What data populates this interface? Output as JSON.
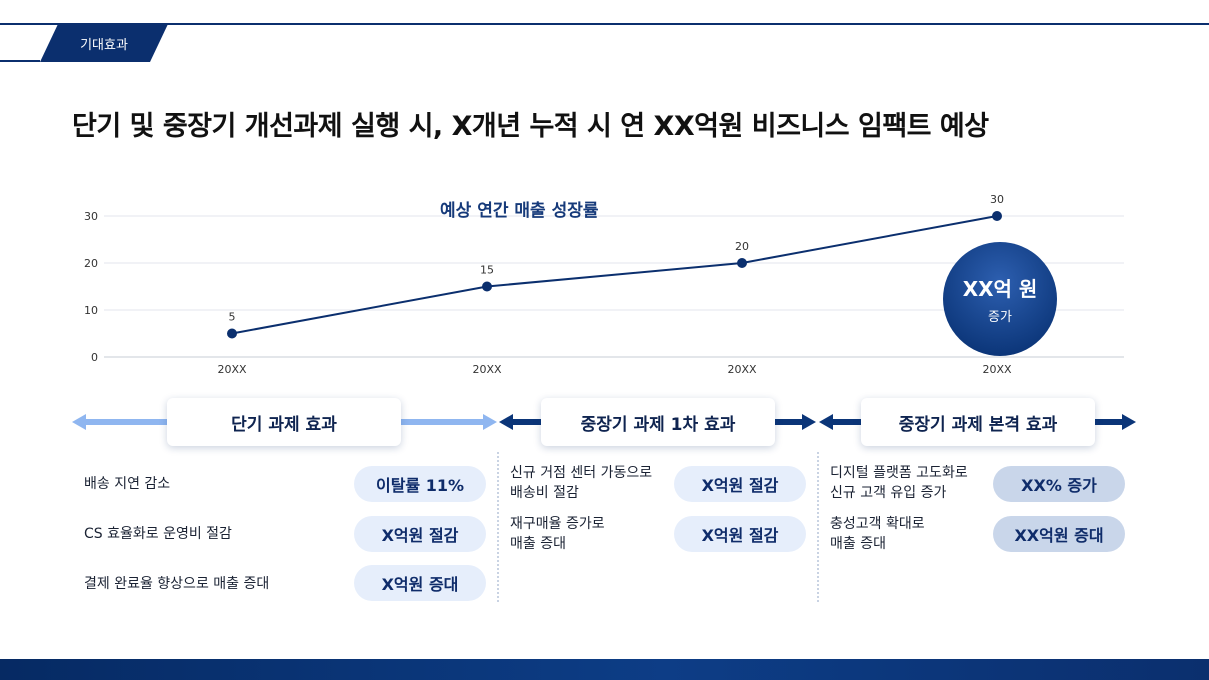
{
  "header": {
    "tag": "기대효과",
    "title": "단기 및 중장기 개선과제 실행 시, X개년 누적 시 연 XX억원 비즈니스 임팩트 예상"
  },
  "colors": {
    "navy": "#0b2f6e",
    "line": "#0b3578",
    "light_arrow": "#8fb6f0",
    "pill_light": "#e6eefb",
    "pill_mid": "#c9d6ea"
  },
  "chart_data": {
    "type": "line",
    "title": "예상 연간 매출 성장률",
    "categories": [
      "20XX",
      "20XX",
      "20XX",
      "20XX"
    ],
    "values": [
      5,
      15,
      20,
      30
    ],
    "ylim": [
      0,
      30
    ],
    "yticks": [
      0,
      10,
      20,
      30
    ],
    "grid": true,
    "data_labels": true,
    "annotation": {
      "main": "XX억 원",
      "sub": "증가"
    }
  },
  "sections": [
    {
      "label": "단기 과제 효과",
      "items": [
        {
          "text": "배송 지연 감소",
          "value": "이탈률 11%"
        },
        {
          "text": "CS 효율화로 운영비 절감",
          "value": "X억원 절감"
        },
        {
          "text": "결제 완료율 향상으로 매출 증대",
          "value": "X억원 증대"
        }
      ]
    },
    {
      "label": "중장기 과제 1차 효과",
      "items": [
        {
          "text": "신규 거점 센터 가동으로\n배송비 절감",
          "value": "X억원 절감"
        },
        {
          "text": "재구매율 증가로\n매출 증대",
          "value": "X억원 절감"
        }
      ]
    },
    {
      "label": "중장기 과제 본격 효과",
      "items": [
        {
          "text": "디지털 플랫폼 고도화로\n신규 고객 유입 증가",
          "value": "XX% 증가"
        },
        {
          "text": "충성고객 확대로\n매출 증대",
          "value": "XX억원 증대"
        }
      ]
    }
  ]
}
